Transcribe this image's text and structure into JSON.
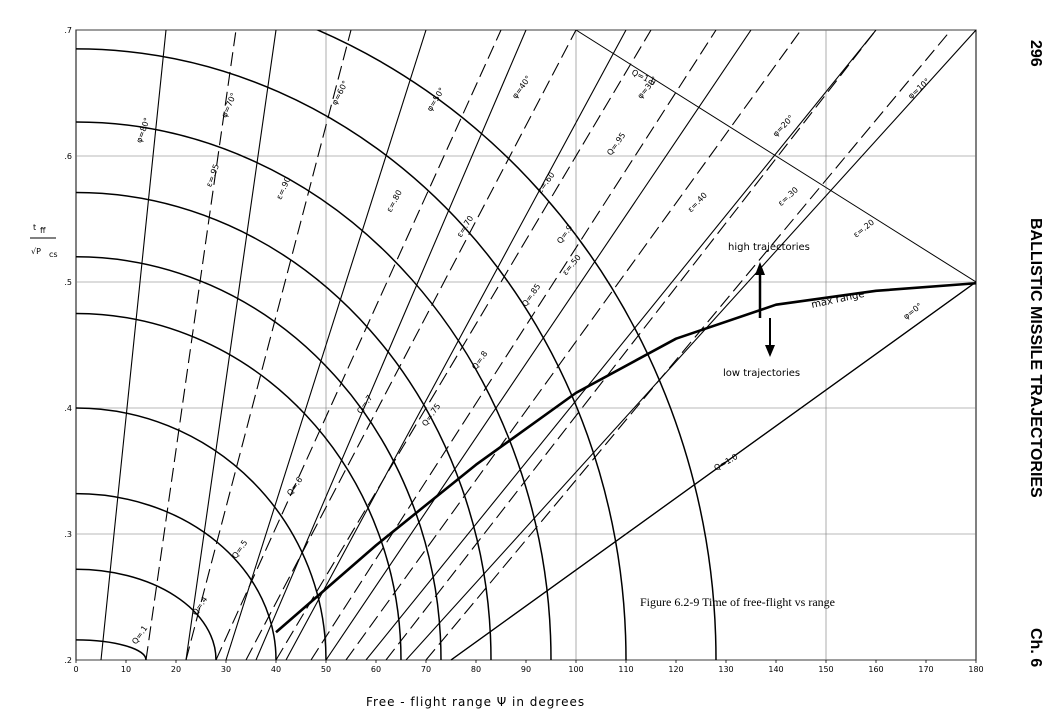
{
  "page": {
    "page_number": "296",
    "running_title": "BALLISTIC MISSILE TRAJECTORIES",
    "chapter": "Ch. 6"
  },
  "chart_data": {
    "type": "line",
    "title": "",
    "caption": "Figure 6.2-9  Time of free-flight vs range",
    "xlabel": "Free - flight  range  Ψ  in  degrees",
    "ylabel": "t_ff / √P_cs",
    "xlim": [
      0,
      180
    ],
    "ylim": [
      0.2,
      0.7
    ],
    "grid": true,
    "x_ticks": [
      "0",
      "10",
      "20",
      "30",
      "40",
      "50",
      "60",
      "70",
      "80",
      "90",
      "100",
      "110",
      "120",
      "130",
      "140",
      "150",
      "160",
      "170",
      "180"
    ],
    "y_ticks": [
      {
        "value": 0.2,
        "label": ".2"
      },
      {
        "value": 0.3,
        "label": ".3"
      },
      {
        "value": 0.4,
        "label": ".4"
      },
      {
        "value": 0.5,
        "label": ".5"
      },
      {
        "value": 0.6,
        "label": ".6"
      },
      {
        "value": 0.7,
        "label": ".7"
      }
    ],
    "q_curves": [
      {
        "label": "Q=.1",
        "value": 0.1,
        "y0": 0.216,
        "x_end": 14,
        "label_at": [
          12,
          0.212
        ]
      },
      {
        "label": "Q=.4",
        "value": 0.4,
        "y0": 0.272,
        "x_end": 28,
        "label_at": [
          24,
          0.235
        ]
      },
      {
        "label": "Q=.5",
        "value": 0.5,
        "y0": 0.332,
        "x_end": 40,
        "label_at": [
          32,
          0.28
        ]
      },
      {
        "label": "Q=.6",
        "value": 0.6,
        "y0": 0.4,
        "x_end": 50,
        "label_at": [
          43,
          0.33
        ]
      },
      {
        "label": "Q=.7",
        "value": 0.7,
        "y0": 0.475,
        "x_end": 65,
        "label_at": [
          57,
          0.395
        ]
      },
      {
        "label": "Q=.75",
        "value": 0.75,
        "y0": 0.52,
        "x_end": 73,
        "label_at": [
          70,
          0.385
        ]
      },
      {
        "label": "Q=.8",
        "value": 0.8,
        "y0": 0.571,
        "x_end": 83,
        "label_at": [
          80,
          0.43
        ]
      },
      {
        "label": "Q=.85",
        "value": 0.85,
        "y0": 0.627,
        "x_end": 95,
        "label_at": [
          90,
          0.48
        ]
      },
      {
        "label": "Q=.9",
        "value": 0.9,
        "y0": 0.685,
        "x_end": 110,
        "label_at": [
          97,
          0.53
        ]
      },
      {
        "label": "Q=.95",
        "value": 0.95,
        "y0": 0.74,
        "x_end": 128,
        "label_at": [
          107,
          0.6
        ]
      }
    ],
    "max_range_curve": {
      "label": "max range",
      "points": [
        [
          40,
          0.222
        ],
        [
          60,
          0.291
        ],
        [
          80,
          0.355
        ],
        [
          100,
          0.412
        ],
        [
          120,
          0.455
        ],
        [
          140,
          0.482
        ],
        [
          160,
          0.493
        ],
        [
          180,
          0.499
        ]
      ]
    },
    "q1_line": {
      "label": "Q=1.0",
      "x": [
        75,
        180
      ],
      "y": [
        0.2,
        0.5
      ]
    },
    "q1_upper": {
      "label": "Q=1.0",
      "x": [
        100,
        180
      ],
      "y": [
        0.7,
        0.5
      ]
    },
    "phi_lines": [
      {
        "label": "φ=80°",
        "x": [
          5,
          18
        ],
        "y": [
          0.2,
          0.7
        ]
      },
      {
        "label": "φ=70°",
        "x": [
          22,
          40
        ],
        "y": [
          0.2,
          0.7
        ]
      },
      {
        "label": "φ=60°",
        "x": [
          30,
          70
        ],
        "y": [
          0.2,
          0.7
        ]
      },
      {
        "label": "φ=50°",
        "x": [
          36,
          90
        ],
        "y": [
          0.2,
          0.7
        ]
      },
      {
        "label": "φ=40°",
        "x": [
          42,
          110
        ],
        "y": [
          0.2,
          0.7
        ]
      },
      {
        "label": "φ=30°",
        "x": [
          50,
          135
        ],
        "y": [
          0.2,
          0.7
        ]
      },
      {
        "label": "φ=20°",
        "x": [
          58,
          160
        ],
        "y": [
          0.2,
          0.7
        ]
      },
      {
        "label": "φ=10°",
        "x": [
          66,
          180
        ],
        "y": [
          0.2,
          0.7
        ]
      },
      {
        "label": "φ=0°",
        "x": [
          75,
          180
        ],
        "y": [
          0.2,
          0.5
        ]
      }
    ],
    "eps_lines": [
      {
        "label": "ε=.95",
        "x": [
          14,
          32
        ],
        "y": [
          0.2,
          0.7
        ]
      },
      {
        "label": "ε=.90",
        "x": [
          22,
          55
        ],
        "y": [
          0.2,
          0.7
        ]
      },
      {
        "label": "ε=.80",
        "x": [
          28,
          85
        ],
        "y": [
          0.2,
          0.7
        ]
      },
      {
        "label": "ε=.70",
        "x": [
          34,
          100
        ],
        "y": [
          0.2,
          0.7
        ]
      },
      {
        "label": "ε=.60",
        "x": [
          40,
          115
        ],
        "y": [
          0.2,
          0.7
        ]
      },
      {
        "label": "ε=.50",
        "x": [
          47,
          128
        ],
        "y": [
          0.2,
          0.7
        ]
      },
      {
        "label": "ε=.40",
        "x": [
          54,
          145
        ],
        "y": [
          0.2,
          0.7
        ]
      },
      {
        "label": "ε=.30",
        "x": [
          62,
          160
        ],
        "y": [
          0.2,
          0.7
        ]
      },
      {
        "label": "ε=.20",
        "x": [
          70,
          175
        ],
        "y": [
          0.2,
          0.7
        ]
      }
    ],
    "annotations": {
      "high": "high trajectories",
      "low": "low trajectories"
    }
  }
}
